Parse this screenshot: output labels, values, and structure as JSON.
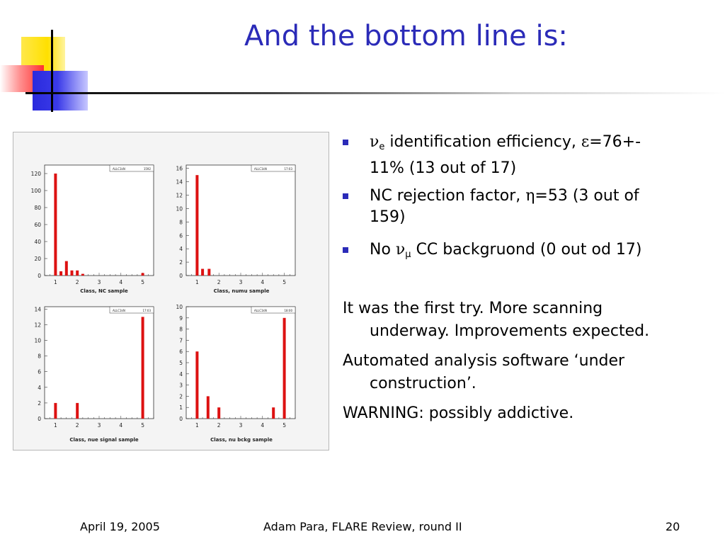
{
  "slide": {
    "title": "And the bottom line is:",
    "bullets": [
      {
        "sym1": "ν",
        "sub1": "e",
        "text1": " identification efficiency, ",
        "sym2": "ε",
        "text2": "=76+-",
        "line2": "11% (13 out of 17)"
      },
      {
        "text1": "NC rejection factor, ",
        "sym": "η",
        "text2": "=53 (3 out of",
        "line2": "159)"
      },
      {
        "text1": "No ",
        "sym": "ν",
        "sub": "μ",
        "text2": " CC backgruond (0 out od 17)"
      }
    ],
    "paragraphs": [
      {
        "line1": "It was the first try. More scanning",
        "line2": "underway. Improvements expected."
      },
      {
        "line1": "Automated analysis software ‘under",
        "line2": "construction’."
      },
      {
        "line1": "WARNING: possibly addictive.",
        "line2": ""
      }
    ],
    "footer": {
      "date": "April 19, 2005",
      "center": "Adam Para, FLARE Review, round II",
      "page": "20"
    }
  },
  "colors": {
    "title": "#2b2bb8",
    "bars": "#dd1111",
    "bullet": "#2b2bb8"
  },
  "chart_data": [
    {
      "type": "bar",
      "xlabel": "Class, NC sample",
      "stat_label": "ALLC1kN",
      "stat_value": "1592",
      "categories": [
        1,
        1.25,
        1.5,
        1.75,
        2,
        2.25,
        5
      ],
      "values": [
        120,
        5,
        17,
        6,
        6,
        2,
        3
      ],
      "xlim": [
        0.5,
        5.5
      ],
      "ylim": [
        0,
        130
      ],
      "xticks": [
        "1",
        "2",
        "3",
        "4",
        "5"
      ],
      "yticks": [
        "0",
        "20",
        "40",
        "60",
        "80",
        "100",
        "120"
      ]
    },
    {
      "type": "bar",
      "xlabel": "Class, numu sample",
      "stat_label": "ALLC1kN",
      "stat_value": "17:03",
      "categories": [
        1,
        1.25,
        1.55
      ],
      "values": [
        15,
        1,
        1
      ],
      "xlim": [
        0.5,
        5.5
      ],
      "ylim": [
        0,
        16.5
      ],
      "xticks": [
        "1",
        "2",
        "3",
        "4",
        "5"
      ],
      "yticks": [
        "0",
        "2",
        "4",
        "6",
        "8",
        "10",
        "12",
        "14",
        "16"
      ]
    },
    {
      "type": "bar",
      "xlabel": "Class, nue signal sample",
      "stat_label": "ALLC1kN",
      "stat_value": "17:03",
      "categories": [
        1,
        2,
        5
      ],
      "values": [
        2,
        2,
        13
      ],
      "xlim": [
        0.5,
        5.5
      ],
      "ylim": [
        0,
        14.3
      ],
      "xticks": [
        "1",
        "2",
        "3",
        "4",
        "5"
      ],
      "yticks": [
        "0",
        "2",
        "4",
        "6",
        "8",
        "10",
        "12",
        "14"
      ]
    },
    {
      "type": "bar",
      "xlabel": "Class, nu bckg sample",
      "stat_label": "ALLC1kN",
      "stat_value": "18:00",
      "categories": [
        1,
        1.5,
        2,
        4.5,
        5
      ],
      "values": [
        6,
        2,
        1,
        1,
        9
      ],
      "xlim": [
        0.5,
        5.5
      ],
      "ylim": [
        0,
        10
      ],
      "xticks": [
        "1",
        "2",
        "3",
        "4",
        "5"
      ],
      "yticks": [
        "0",
        "1",
        "2",
        "3",
        "4",
        "5",
        "6",
        "7",
        "8",
        "9",
        "10"
      ]
    }
  ]
}
